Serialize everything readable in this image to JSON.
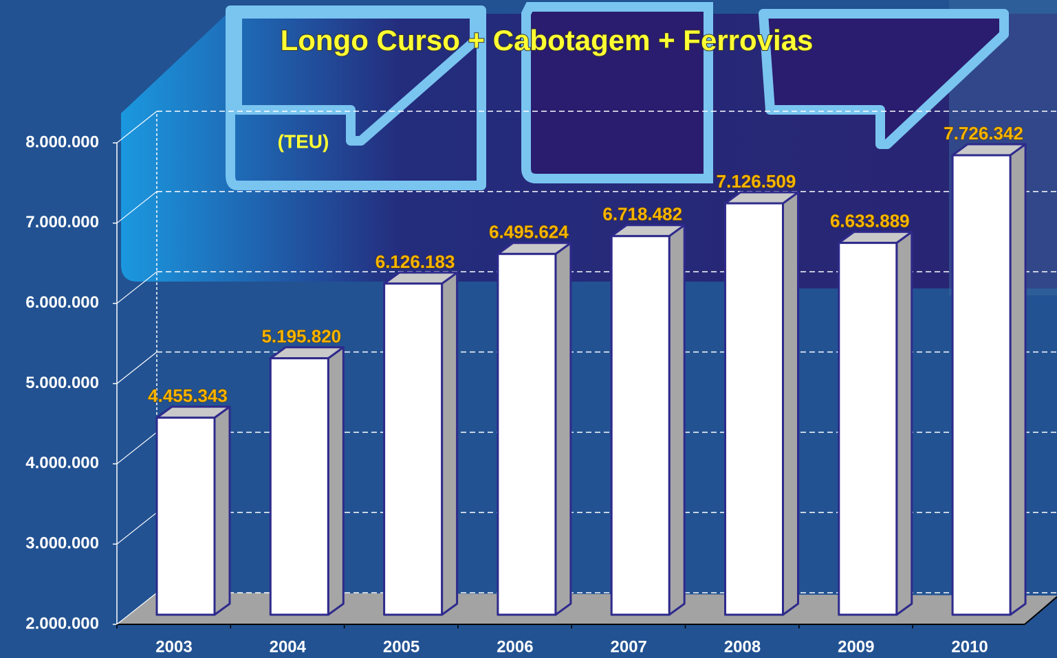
{
  "chart_data": {
    "type": "bar3d",
    "title": "Longo Curso + Cabotagem + Ferrovias",
    "subtitle": "(TEU)",
    "categories": [
      "2003",
      "2004",
      "2005",
      "2006",
      "2007",
      "2008",
      "2009",
      "2010"
    ],
    "values": [
      4455343,
      5195820,
      6126183,
      6495624,
      6718482,
      7126509,
      6633889,
      7726342
    ],
    "value_labels": [
      "4.455.343",
      "5.195.820",
      "6.126.183",
      "6.495.624",
      "6.718.482",
      "7.126.509",
      "6.633.889",
      "7.726.342"
    ],
    "color": "#ffffff",
    "ylim": [
      2000000,
      8000000
    ],
    "yticks": [
      {
        "value": 2000000,
        "label": "2.000.000"
      },
      {
        "value": 3000000,
        "label": "3.000.000"
      },
      {
        "value": 4000000,
        "label": "4.000.000"
      },
      {
        "value": 5000000,
        "label": "5.000.000"
      },
      {
        "value": 6000000,
        "label": "6.000.000"
      },
      {
        "value": 7000000,
        "label": "7.000.000"
      },
      {
        "value": 8000000,
        "label": "8.000.000"
      }
    ],
    "grid": true
  }
}
